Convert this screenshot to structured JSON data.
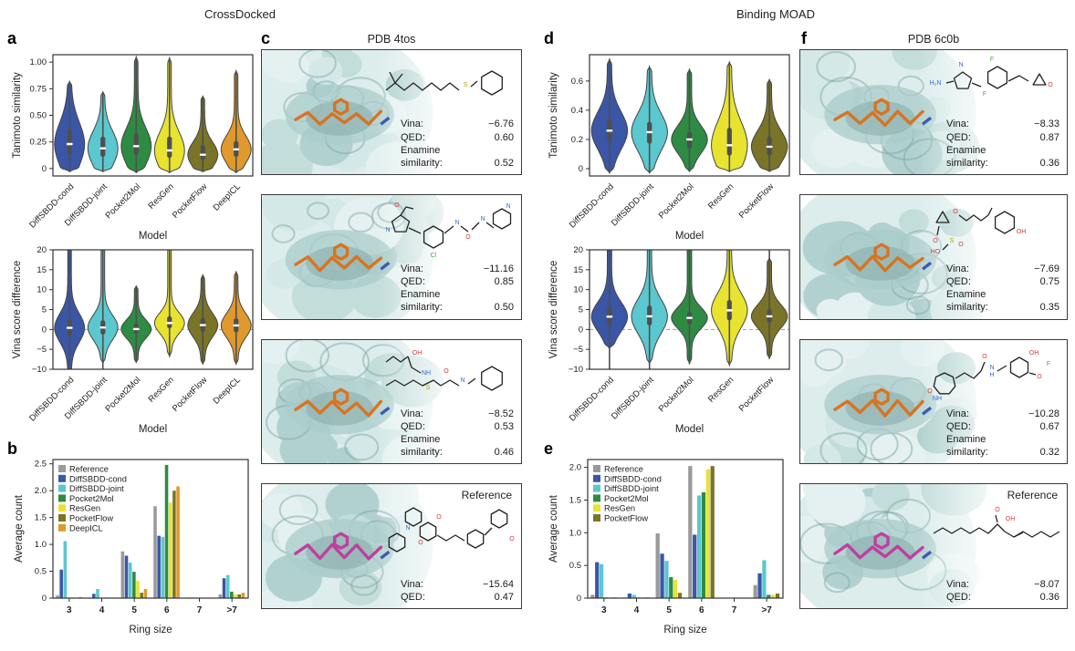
{
  "titles": {
    "left": "CrossDocked",
    "right": "Binding MOAD"
  },
  "panel_labels": {
    "a": "a",
    "b": "b",
    "c": "c",
    "d": "d",
    "e": "e",
    "f": "f"
  },
  "colors": {
    "reference": "#9a9a9a",
    "diffsbdd_cond": "#3b56a7",
    "diffsbdd_joint": "#5ac8ce",
    "pocket2mol": "#2e8b43",
    "resgen": "#e7e32f",
    "pocketflow": "#7a7428",
    "deepicl": "#e0992c",
    "violin_outline": "#444444",
    "box": "#4f4f4f",
    "median": "#ffffff",
    "pocket_surface": "#cfe7e6",
    "pocket_shadow": "#7fa8a6",
    "ligand_generated": "#d9731f",
    "ligand_reference": "#bf3f9f"
  },
  "chart_data": [
    {
      "id": "a-top",
      "type": "violin",
      "title": "",
      "ylabel": "Tanimoto similarity",
      "xlabel": "Model",
      "ylim": [
        -0.07,
        1.07
      ],
      "yticks": [
        {
          "v": 0,
          "t": "0"
        },
        {
          "v": 0.25,
          "t": "0.25"
        },
        {
          "v": 0.5,
          "t": "0.50"
        },
        {
          "v": 0.75,
          "t": "0.75"
        },
        {
          "v": 1.0,
          "t": "1.00"
        }
      ],
      "zero_line": false,
      "categories": [
        "DiffSBDD-cond",
        "DiffSBDD-joint",
        "Pocket2Mol",
        "ResGen",
        "PocketFlow",
        "DeepICL"
      ],
      "colors": [
        "#3b56a7",
        "#5ac8ce",
        "#2e8b43",
        "#e7e32f",
        "#7a7428",
        "#e0992c"
      ],
      "stats": [
        {
          "lo": -0.03,
          "hi": 0.82,
          "q1": 0.13,
          "med": 0.23,
          "q3": 0.37,
          "wlo": -0.03,
          "whi": 0.82
        },
        {
          "lo": -0.03,
          "hi": 0.72,
          "q1": 0.11,
          "med": 0.19,
          "q3": 0.3,
          "wlo": -0.03,
          "whi": 0.72
        },
        {
          "lo": -0.04,
          "hi": 1.05,
          "q1": 0.13,
          "med": 0.21,
          "q3": 0.33,
          "wlo": -0.04,
          "whi": 1.05
        },
        {
          "lo": -0.04,
          "hi": 1.04,
          "q1": 0.1,
          "med": 0.17,
          "q3": 0.3,
          "wlo": -0.04,
          "whi": 1.04
        },
        {
          "lo": -0.03,
          "hi": 0.68,
          "q1": 0.08,
          "med": 0.13,
          "q3": 0.22,
          "wlo": -0.03,
          "whi": 0.68
        },
        {
          "lo": -0.04,
          "hi": 0.92,
          "q1": 0.11,
          "med": 0.18,
          "q3": 0.26,
          "wlo": -0.04,
          "whi": 0.92
        }
      ]
    },
    {
      "id": "a-bottom",
      "type": "violin",
      "title": "",
      "ylabel": "Vina score difference",
      "xlabel": "Model",
      "ylim": [
        -10,
        20
      ],
      "yticks": [
        {
          "v": -10,
          "t": "−10"
        },
        {
          "v": -5,
          "t": "−5"
        },
        {
          "v": 0,
          "t": "0"
        },
        {
          "v": 5,
          "t": "5"
        },
        {
          "v": 10,
          "t": "10"
        },
        {
          "v": 15,
          "t": "15"
        },
        {
          "v": 20,
          "t": "20"
        }
      ],
      "zero_line": true,
      "categories": [
        "DiffSBDD-cond",
        "DiffSBDD-joint",
        "Pocket2Mol",
        "ResGen",
        "PocketFlow",
        "DeepICL"
      ],
      "colors": [
        "#3b56a7",
        "#5ac8ce",
        "#2e8b43",
        "#e7e32f",
        "#7a7428",
        "#e0992c"
      ],
      "stats": [
        {
          "lo": -10,
          "hi": 20,
          "q1": -1.6,
          "med": 0.4,
          "q3": 2.6,
          "wlo": -10,
          "whi": 20
        },
        {
          "lo": -8.6,
          "hi": 20,
          "q1": -1.3,
          "med": 0.5,
          "q3": 2.3,
          "wlo": -10,
          "whi": 20
        },
        {
          "lo": -8.3,
          "hi": 10.9,
          "q1": -1.1,
          "med": 0.1,
          "q3": 1.6,
          "wlo": -8.3,
          "whi": 10.9
        },
        {
          "lo": -6.8,
          "hi": 20,
          "q1": 0.3,
          "med": 1.6,
          "q3": 3.3,
          "wlo": -6.8,
          "whi": 20
        },
        {
          "lo": -8.7,
          "hi": 13.7,
          "q1": -0.6,
          "med": 1.1,
          "q3": 2.9,
          "wlo": -8.7,
          "whi": 13.7
        },
        {
          "lo": -8.7,
          "hi": 14.5,
          "q1": -0.7,
          "med": 1.0,
          "q3": 2.8,
          "wlo": -8.7,
          "whi": 14.5
        }
      ]
    },
    {
      "id": "b",
      "type": "bar",
      "title": "",
      "ylabel": "Average count",
      "xlabel": "Ring size",
      "ylim": [
        0,
        2.58
      ],
      "yticks": [
        {
          "v": 0,
          "t": "0"
        },
        {
          "v": 0.5,
          "t": "0.5"
        },
        {
          "v": 1.0,
          "t": "1.0"
        },
        {
          "v": 1.5,
          "t": "1.5"
        },
        {
          "v": 2.0,
          "t": "2.0"
        },
        {
          "v": 2.5,
          "t": "2.5"
        }
      ],
      "categories": [
        "3",
        "4",
        "5",
        "6",
        "7",
        ">7"
      ],
      "series": [
        {
          "name": "Reference",
          "color": "#9a9a9a",
          "values": [
            0.05,
            0.01,
            0.87,
            1.71,
            0.01,
            0.07
          ]
        },
        {
          "name": "DiffSBDD-cond",
          "color": "#3b56a7",
          "values": [
            0.53,
            0.08,
            0.79,
            1.16,
            0.01,
            0.37
          ]
        },
        {
          "name": "DiffSBDD-joint",
          "color": "#5ac8ce",
          "values": [
            1.06,
            0.17,
            0.66,
            1.14,
            0.01,
            0.43
          ]
        },
        {
          "name": "Pocket2Mol",
          "color": "#2e8b43",
          "values": [
            0.01,
            0.0,
            0.49,
            2.48,
            0.0,
            0.12
          ]
        },
        {
          "name": "ResGen",
          "color": "#e7e32f",
          "values": [
            0.01,
            0.01,
            0.32,
            1.78,
            0.0,
            0.07
          ]
        },
        {
          "name": "PocketFlow",
          "color": "#7a7428",
          "values": [
            0.0,
            0.0,
            0.1,
            2.0,
            0.0,
            0.07
          ]
        },
        {
          "name": "DeepICL",
          "color": "#e0992c",
          "values": [
            0.02,
            0.01,
            0.17,
            2.08,
            0.0,
            0.1
          ]
        }
      ]
    },
    {
      "id": "d-top",
      "type": "violin",
      "title": "",
      "ylabel": "Tanimoto similarity",
      "xlabel": "Model",
      "ylim": [
        -0.05,
        0.78
      ],
      "yticks": [
        {
          "v": 0,
          "t": "0"
        },
        {
          "v": 0.2,
          "t": "0.2"
        },
        {
          "v": 0.4,
          "t": "0.4"
        },
        {
          "v": 0.6,
          "t": "0.6"
        }
      ],
      "zero_line": false,
      "categories": [
        "DiffSBDD-cond",
        "DiffSBDD-joint",
        "Pocket2Mol",
        "ResGen",
        "PocketFlow"
      ],
      "colors": [
        "#3b56a7",
        "#5ac8ce",
        "#2e8b43",
        "#e7e32f",
        "#7a7428"
      ],
      "stats": [
        {
          "lo": -0.03,
          "hi": 0.75,
          "q1": 0.19,
          "med": 0.26,
          "q3": 0.34,
          "wlo": -0.03,
          "whi": 0.75
        },
        {
          "lo": -0.03,
          "hi": 0.7,
          "q1": 0.17,
          "med": 0.25,
          "q3": 0.32,
          "wlo": -0.03,
          "whi": 0.7
        },
        {
          "lo": -0.02,
          "hi": 0.68,
          "q1": 0.14,
          "med": 0.2,
          "q3": 0.25,
          "wlo": -0.02,
          "whi": 0.68
        },
        {
          "lo": -0.02,
          "hi": 0.73,
          "q1": 0.09,
          "med": 0.16,
          "q3": 0.28,
          "wlo": -0.02,
          "whi": 0.73
        },
        {
          "lo": -0.02,
          "hi": 0.61,
          "q1": 0.09,
          "med": 0.15,
          "q3": 0.22,
          "wlo": -0.02,
          "whi": 0.61
        }
      ]
    },
    {
      "id": "d-bottom",
      "type": "violin",
      "title": "",
      "ylabel": "Vina score difference",
      "xlabel": "Model",
      "ylim": [
        -10,
        20
      ],
      "yticks": [
        {
          "v": -10,
          "t": "−10"
        },
        {
          "v": -5,
          "t": "−5"
        },
        {
          "v": 0,
          "t": "0"
        },
        {
          "v": 5,
          "t": "5"
        },
        {
          "v": 10,
          "t": "10"
        },
        {
          "v": 15,
          "t": "15"
        },
        {
          "v": 20,
          "t": "20"
        }
      ],
      "zero_line": true,
      "categories": [
        "DiffSBDD-cond",
        "DiffSBDD-joint",
        "Pocket2Mol",
        "ResGen",
        "PocketFlow"
      ],
      "colors": [
        "#3b56a7",
        "#5ac8ce",
        "#2e8b43",
        "#e7e32f",
        "#7a7428"
      ],
      "stats": [
        {
          "lo": -4.8,
          "hi": 20,
          "q1": 1.2,
          "med": 3.2,
          "q3": 5.5,
          "wlo": -10,
          "whi": 20
        },
        {
          "lo": -8.6,
          "hi": 20,
          "q1": 1.0,
          "med": 3.3,
          "q3": 6.0,
          "wlo": -10,
          "whi": 20
        },
        {
          "lo": -8.6,
          "hi": 20,
          "q1": 1.3,
          "med": 2.9,
          "q3": 4.4,
          "wlo": -8.6,
          "whi": 20
        },
        {
          "lo": -9.0,
          "hi": 20,
          "q1": 2.3,
          "med": 4.8,
          "q3": 7.4,
          "wlo": -9.0,
          "whi": 20
        },
        {
          "lo": -7.3,
          "hi": 18,
          "q1": 1.7,
          "med": 3.3,
          "q3": 5.1,
          "wlo": -7.3,
          "whi": 20
        }
      ]
    },
    {
      "id": "e",
      "type": "bar",
      "title": "",
      "ylabel": "Average count",
      "xlabel": "Ring size",
      "ylim": [
        0,
        2.12
      ],
      "yticks": [
        {
          "v": 0,
          "t": "0"
        },
        {
          "v": 0.5,
          "t": "0.5"
        },
        {
          "v": 1.0,
          "t": "1.0"
        },
        {
          "v": 1.5,
          "t": "1.5"
        },
        {
          "v": 2.0,
          "t": "2.0"
        }
      ],
      "categories": [
        "3",
        "4",
        "5",
        "6",
        "7",
        ">7"
      ],
      "series": [
        {
          "name": "Reference",
          "color": "#9a9a9a",
          "values": [
            0.05,
            0.01,
            0.99,
            2.02,
            0.0,
            0.2
          ]
        },
        {
          "name": "DiffSBDD-cond",
          "color": "#3b56a7",
          "values": [
            0.55,
            0.07,
            0.68,
            0.97,
            0.0,
            0.38
          ]
        },
        {
          "name": "DiffSBDD-joint",
          "color": "#5ac8ce",
          "values": [
            0.52,
            0.05,
            0.57,
            1.57,
            0.0,
            0.58
          ]
        },
        {
          "name": "Pocket2Mol",
          "color": "#2e8b43",
          "values": [
            0.01,
            0.01,
            0.32,
            1.62,
            0.0,
            0.05
          ]
        },
        {
          "name": "ResGen",
          "color": "#e7e32f",
          "values": [
            0.01,
            0.01,
            0.28,
            1.97,
            0.0,
            0.05
          ]
        },
        {
          "name": "PocketFlow",
          "color": "#7a7428",
          "values": [
            0.01,
            0.01,
            0.08,
            2.02,
            0.0,
            0.07
          ]
        }
      ]
    }
  ],
  "panel_c": {
    "title": "PDB 4tos",
    "cards": [
      {
        "vina_label": "Vina:",
        "vina": "−6.76",
        "qed_label": "QED:",
        "qed": "0.60",
        "enamine_line1": "Enamine",
        "enamine_line2": "similarity:",
        "enamine": "0.52"
      },
      {
        "vina_label": "Vina:",
        "vina": "−11.16",
        "qed_label": "QED:",
        "qed": "0.85",
        "enamine_line1": "Enamine",
        "enamine_line2": "similarity:",
        "enamine": "0.50"
      },
      {
        "vina_label": "Vina:",
        "vina": "−8.52",
        "qed_label": "QED:",
        "qed": "0.53",
        "enamine_line1": "Enamine",
        "enamine_line2": "similarity:",
        "enamine": "0.46"
      },
      {
        "tag": "Reference",
        "vina_label": "Vina:",
        "vina": "−15.64",
        "qed_label": "QED:",
        "qed": "0.47"
      }
    ]
  },
  "panel_f": {
    "title": "PDB 6c0b",
    "cards": [
      {
        "vina_label": "Vina:",
        "vina": "−8.33",
        "qed_label": "QED:",
        "qed": "0.87",
        "enamine_line1": "Enamine",
        "enamine_line2": "similarity:",
        "enamine": "0.36"
      },
      {
        "vina_label": "Vina:",
        "vina": "−7.69",
        "qed_label": "QED:",
        "qed": "0.75",
        "enamine_line1": "Enamine",
        "enamine_line2": "similarity:",
        "enamine": "0.35"
      },
      {
        "vina_label": "Vina:",
        "vina": "−10.28",
        "qed_label": "QED:",
        "qed": "0.67",
        "enamine_line1": "Enamine",
        "enamine_line2": "similarity:",
        "enamine": "0.32"
      },
      {
        "tag": "Reference",
        "vina_label": "Vina:",
        "vina": "−8.07",
        "qed_label": "QED:",
        "qed": "0.36"
      }
    ]
  }
}
